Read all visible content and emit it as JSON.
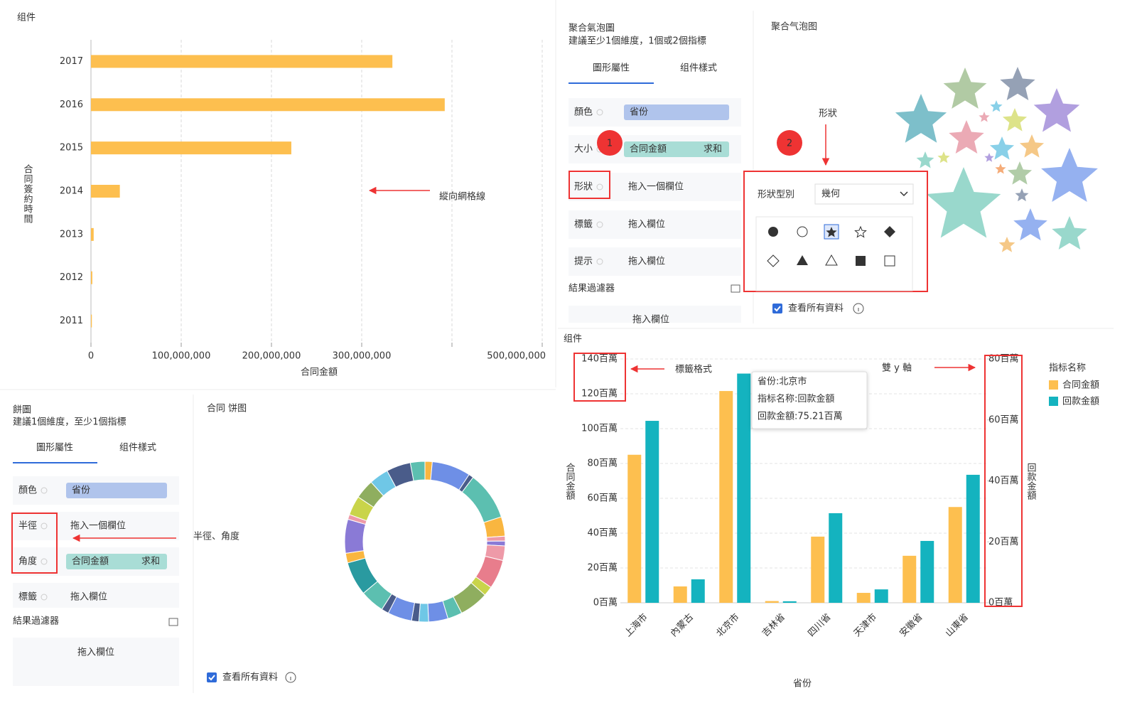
{
  "chart_data": [
    {
      "type": "bar",
      "orientation": "horizontal",
      "title": "组件",
      "categories": [
        "2017",
        "2016",
        "2015",
        "2014",
        "2013",
        "2012",
        "2011"
      ],
      "values": [
        334000000,
        392000000,
        222000000,
        32000000,
        3000000,
        1500000,
        1000000
      ],
      "color": "#fdbf4f",
      "xlim": [
        0,
        500000000
      ],
      "xticks": [
        0,
        {
          "value": 100000000,
          "label": "100,000,000"
        },
        {
          "value": 200000000,
          "label": "200,000,000"
        },
        {
          "value": 300000000,
          "label": "300,000,000"
        },
        {
          "value": 400000000,
          "label": null
        },
        {
          "value": 500000000,
          "label": "500,000,000"
        }
      ],
      "grid": true,
      "x_label": "合同金額",
      "y_label": "合同簽約時間",
      "annotation": "縱向網格線"
    },
    {
      "type": "pie",
      "donut": true,
      "title": "合同 饼图",
      "values": [
        1.5,
        8,
        1,
        10,
        4,
        1,
        1,
        3,
        6,
        2,
        6,
        3,
        4,
        2,
        1.5,
        5,
        1.5,
        5,
        7,
        2,
        7,
        1,
        4,
        4,
        4,
        5,
        3
      ],
      "colors": [
        "#f9b640",
        "#6e8fe6",
        "#4a5c8a",
        "#5cbfb0",
        "#f9b640",
        "#ee9aa8",
        "#8a7ad6",
        "#ee9aa8",
        "#e87d8c",
        "#c9d44a",
        "#8fae5f",
        "#5cbfb0",
        "#6e8fe6",
        "#6fc7e6",
        "#4a5c8a",
        "#6e8fe6",
        "#4a5c8a",
        "#5cbfb0",
        "#2a9aa0",
        "#f9b640",
        "#8a7ad6",
        "#ee9aa8",
        "#c9d44a",
        "#8fae5f",
        "#6fc7e6",
        "#4a5c8a",
        "#5cbfb0"
      ],
      "checkbox": "查看所有資料"
    },
    {
      "type": "bar",
      "title": "组件",
      "categories": [
        "上海市",
        "內蒙古",
        "北京市",
        "吉林省",
        "四川省",
        "天津市",
        "安徽省",
        "山東省"
      ],
      "series": [
        {
          "name": "合同金額",
          "color": "#fdbf4f",
          "values": [
            85,
            9.4,
            121.6,
            1,
            38,
            5.7,
            27,
            55
          ]
        },
        {
          "name": "回款金額",
          "color": "#14b3bf",
          "axis": "y2",
          "values": [
            59.7,
            7.7,
            75.21,
            0.5,
            29.4,
            4.4,
            20.3,
            42
          ]
        }
      ],
      "ylim": [
        0,
        140
      ],
      "yticks": [
        {
          "value": 0,
          "label": "0百萬"
        },
        {
          "value": 20,
          "label": "20百萬"
        },
        {
          "value": 40,
          "label": "40百萬"
        },
        {
          "value": 60,
          "label": "60百萬"
        },
        {
          "value": 80,
          "label": "80百萬"
        },
        {
          "value": 100,
          "label": "100百萬"
        },
        {
          "value": 120,
          "label": "120百萬"
        },
        {
          "value": 140,
          "label": "140百萬"
        }
      ],
      "y2lim": [
        0,
        80
      ],
      "y2ticks": [
        {
          "value": 0,
          "label": "0百萬"
        },
        {
          "value": 20,
          "label": "20百萬"
        },
        {
          "value": 40,
          "label": "40百萬"
        },
        {
          "value": 60,
          "label": "60百萬"
        },
        {
          "value": 80,
          "label": "80百萬"
        }
      ],
      "grid": true,
      "x_label": "省份",
      "y_label": "合同金額",
      "y2_label": "回款金額",
      "legend_title": "指标名称",
      "tooltip": [
        "省份:北京市",
        "指标名称:回款金額",
        "回款金額:75.21百萬"
      ],
      "annotations": [
        "標籤格式",
        "雙 y 軸"
      ]
    }
  ],
  "bubble_panel": {
    "title": "聚合氣泡圖",
    "hint": "建議至少1個維度，1個或2個指標",
    "tabs": [
      "圖形屬性",
      "组件樣式"
    ],
    "fields": [
      {
        "label": "顏色",
        "value": "省份"
      },
      {
        "label": "大小",
        "value": "合同金額",
        "aggregate": "求和"
      },
      {
        "label": "形狀",
        "placeholder": "拖入一個欄位"
      },
      {
        "label": "標籤",
        "placeholder": "拖入欄位"
      },
      {
        "label": "提示",
        "placeholder": "拖入欄位"
      }
    ],
    "filter_title": "結果過濾器",
    "filter_placeholder": "拖入欄位",
    "chart_title": "聚合气泡图",
    "annotation": "形狀",
    "badges": [
      "1",
      "2"
    ],
    "shape_popup": {
      "label": "形狀型別",
      "select": "幾何"
    },
    "checkbox": "查看所有資料"
  },
  "pie_panel": {
    "title": "餅圖",
    "hint": "建議1個維度，至少1個指標",
    "tabs": [
      "圖形屬性",
      "组件樣式"
    ],
    "fields": [
      {
        "label": "顏色",
        "value": "省份"
      },
      {
        "label": "半徑",
        "placeholder": "拖入一個欄位"
      },
      {
        "label": "角度",
        "value": "合同金額",
        "aggregate": "求和"
      },
      {
        "label": "標籤",
        "placeholder": "拖入欄位"
      }
    ],
    "filter_title": "結果過濾器",
    "filter_placeholder": "拖入欄位",
    "annotation": "半徑、角度"
  }
}
